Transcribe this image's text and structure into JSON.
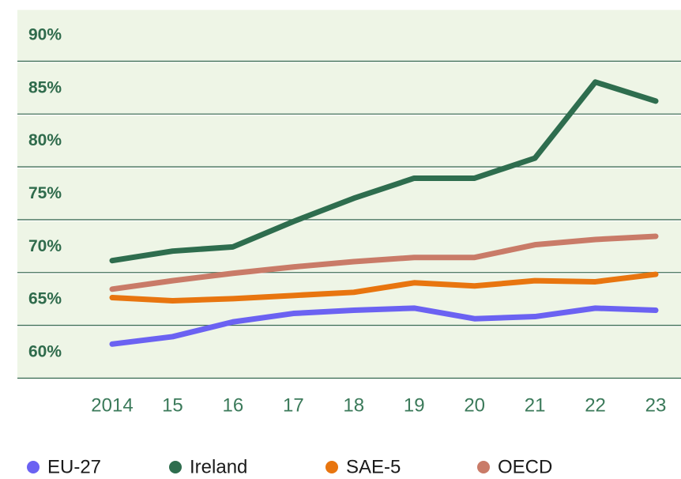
{
  "chart_data": {
    "type": "line",
    "categories": [
      "2014",
      "15",
      "16",
      "17",
      "18",
      "19",
      "20",
      "21",
      "22",
      "23"
    ],
    "series": [
      {
        "name": "EU-27",
        "color": "#6b62f2",
        "values": [
          60.8,
          61.5,
          62.9,
          63.7,
          64.0,
          64.2,
          63.2,
          63.4,
          64.2,
          64.0
        ]
      },
      {
        "name": "Ireland",
        "color": "#2e6d4e",
        "values": [
          68.7,
          69.6,
          70.0,
          72.4,
          74.6,
          76.5,
          76.5,
          78.4,
          85.6,
          83.8
        ]
      },
      {
        "name": "SAE-5",
        "color": "#e8750f",
        "values": [
          65.2,
          64.9,
          65.1,
          65.4,
          65.7,
          66.6,
          66.3,
          66.8,
          66.7,
          67.4
        ]
      },
      {
        "name": "OECD",
        "color": "#c97b68",
        "values": [
          66.0,
          66.8,
          67.5,
          68.1,
          68.6,
          69.0,
          69.0,
          70.2,
          70.7,
          71.0
        ]
      }
    ],
    "ylim": [
      60,
      90
    ],
    "yticks": [
      {
        "value": 60,
        "label": "60%"
      },
      {
        "value": 65,
        "label": "65%"
      },
      {
        "value": 70,
        "label": "70%"
      },
      {
        "value": 75,
        "label": "75%"
      },
      {
        "value": 80,
        "label": "80%"
      },
      {
        "value": 85,
        "label": "85%"
      },
      {
        "value": 90,
        "label": "90%"
      }
    ],
    "grid": true
  }
}
